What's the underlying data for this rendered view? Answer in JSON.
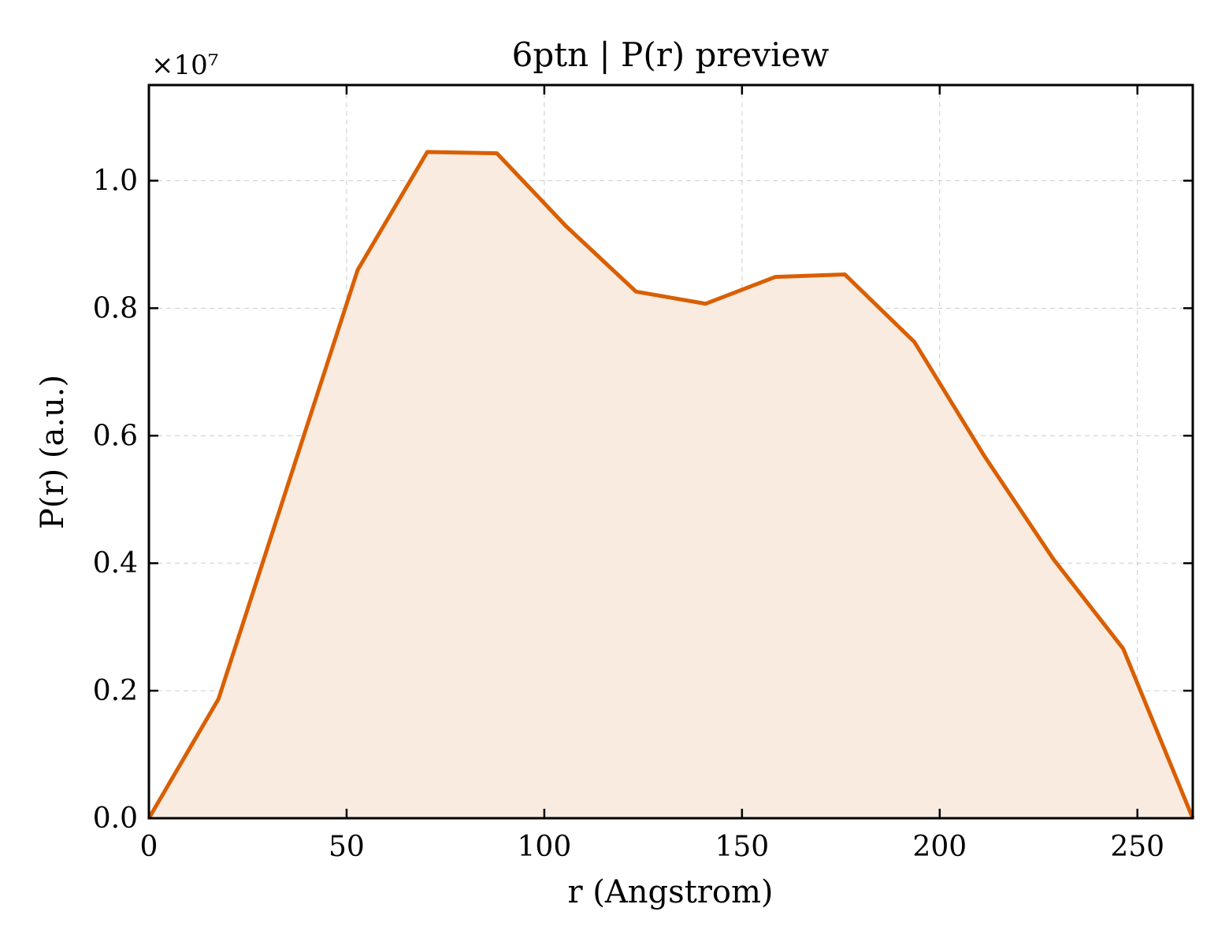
{
  "chart_data": {
    "type": "area",
    "title": "6ptn | P(r) preview",
    "xlabel": "r (Angstrom)",
    "ylabel": "P(r) (a.u.)",
    "y_offset_label": "×10⁷",
    "xlim": [
      0,
      264
    ],
    "ylim": [
      0,
      1.15
    ],
    "grid": true,
    "line_color": "#d95f02",
    "fill_color": "#f9ebe0",
    "x_ticks": [
      0,
      50,
      100,
      150,
      200,
      250
    ],
    "x_tick_labels": [
      "0",
      "50",
      "100",
      "150",
      "200",
      "250"
    ],
    "y_ticks": [
      0,
      0.2,
      0.4,
      0.6,
      0.8,
      1.0
    ],
    "y_tick_labels": [
      "0.0",
      "0.2",
      "0.4",
      "0.6",
      "0.8",
      "1.0"
    ],
    "x": [
      0,
      17.6,
      35.2,
      52.8,
      70.4,
      88,
      105.6,
      123.2,
      140.8,
      158.4,
      176,
      193.6,
      211.2,
      228.8,
      246.4,
      264
    ],
    "y": [
      0,
      0.187,
      0.524,
      0.86,
      1.045,
      1.043,
      0.928,
      0.826,
      0.807,
      0.849,
      0.853,
      0.747,
      0.569,
      0.406,
      0.266,
      0
    ]
  }
}
